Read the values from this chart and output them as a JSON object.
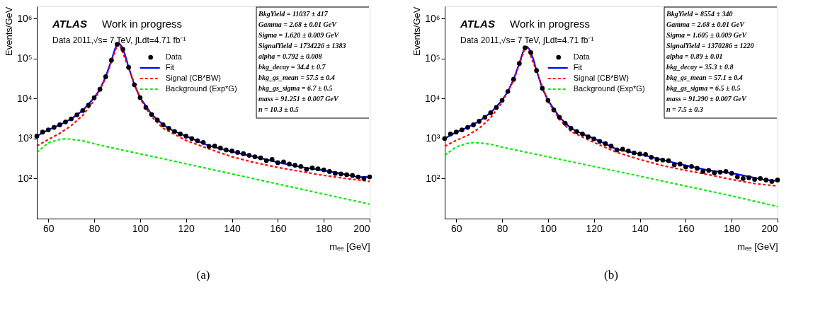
{
  "chart_data": [
    {
      "type": "scatter",
      "xlabel": "mₑₑ [GeV]",
      "ylabel": "Events/GeV",
      "log": true,
      "legend": "top right",
      "grid": false,
      "xlim": [
        55,
        200
      ],
      "xticks": [
        60,
        80,
        100,
        120,
        140,
        160,
        180,
        200
      ],
      "ylim": [
        10,
        2000000
      ],
      "yticks": [
        {
          "value": 100,
          "label": "10²"
        },
        {
          "value": 1000,
          "label": "10³"
        },
        {
          "value": 10000,
          "label": "10⁴"
        },
        {
          "value": 100000,
          "label": "10⁵"
        },
        {
          "value": 1000000,
          "label": "10⁶"
        }
      ],
      "annotations": [
        "ATLAS",
        "Work in progress",
        "Data 2011,√s= 7 TeV, ∫Ldt=4.71 fb⁻¹",
        "BkgYield = 11037 ± 417",
        "Gamma = 2.68 ± 0.01 GeV",
        "Sigma = 1.620 ± 0.009 GeV",
        "SignalYield = 1734226 ± 1383",
        "alpha = 0.792 ± 0.008",
        "bkg_decay = 34.4 ± 0.7",
        "bkg_gs_mean = 57.5 ± 0.4",
        "bkg_gs_sigma = 6.7 ± 0.5",
        "mass = 91.251 ± 0.007 GeV",
        "n = 10.3 ± 0.5",
        "(a)"
      ],
      "series": [
        {
          "name": "Data",
          "type": "scatter",
          "marker": "circle",
          "color": "#000000",
          "x": [
            55,
            57.5,
            60,
            62.5,
            65,
            67.5,
            70,
            72.5,
            75,
            77.5,
            80,
            82.5,
            85,
            87.5,
            90,
            92.5,
            95,
            97.5,
            100,
            102.5,
            105,
            107.5,
            110,
            112.5,
            115,
            117.5,
            120,
            122.5,
            125,
            127.5,
            130,
            132.5,
            135,
            137.5,
            140,
            142.5,
            145,
            147.5,
            150,
            152.5,
            155,
            157.5,
            160,
            162.5,
            165,
            167.5,
            170,
            172.5,
            175,
            177.5,
            180,
            182.5,
            185,
            187.5,
            190,
            192.5,
            195,
            197.5,
            200
          ],
          "values": [
            1150,
            1450,
            1650,
            1900,
            2200,
            2600,
            3100,
            3900,
            5000,
            6800,
            10500,
            17000,
            35000,
            90000,
            225000,
            170000,
            60000,
            22000,
            10500,
            6000,
            4000,
            2900,
            2200,
            1800,
            1500,
            1300,
            1150,
            1000,
            880,
            800,
            640,
            650,
            580,
            520,
            490,
            450,
            420,
            380,
            350,
            330,
            280,
            300,
            250,
            260,
            230,
            215,
            200,
            170,
            185,
            175,
            165,
            150,
            135,
            130,
            125,
            120,
            110,
            100,
            110
          ]
        },
        {
          "name": "Fit",
          "type": "line",
          "line_style": "solid",
          "color": "#0000ff",
          "x": [
            55,
            60,
            65,
            70,
            75,
            80,
            82.5,
            85,
            87.5,
            89,
            90,
            91,
            92,
            93.5,
            95,
            97.5,
            100,
            105,
            110,
            115,
            120,
            130,
            140,
            150,
            160,
            170,
            180,
            190,
            195,
            200
          ],
          "values": [
            1150,
            1650,
            2200,
            3100,
            5000,
            10500,
            17000,
            35000,
            90000,
            170000,
            225000,
            235000,
            200000,
            120000,
            60000,
            22000,
            10500,
            4000,
            2200,
            1500,
            1150,
            660,
            470,
            350,
            255,
            195,
            160,
            125,
            108,
            110
          ]
        },
        {
          "name": "Signal (CB*BW)",
          "type": "line",
          "line_style": "dashed",
          "color": "#ff0000",
          "x": [
            55,
            60,
            65,
            70,
            75,
            80,
            85,
            90,
            91,
            95,
            100,
            105,
            110,
            120,
            130,
            140,
            150,
            160,
            170,
            180,
            190,
            200
          ],
          "values": [
            650,
            950,
            1350,
            2100,
            3800,
            9000,
            32000,
            215000,
            230000,
            57000,
            9800,
            3500,
            1800,
            900,
            550,
            350,
            250,
            190,
            150,
            120,
            100,
            85
          ]
        },
        {
          "name": "Background (Exp*G)",
          "type": "line",
          "line_style": "dashed",
          "color": "#00ee00",
          "x": [
            55,
            60,
            65,
            67.5,
            70,
            75,
            80,
            90,
            100,
            120,
            140,
            160,
            180,
            200
          ],
          "values": [
            450,
            780,
            950,
            980,
            960,
            880,
            740,
            550,
            415,
            234,
            131,
            73,
            41,
            23
          ]
        }
      ]
    },
    {
      "type": "scatter",
      "xlabel": "mₑₑ [GeV]",
      "ylabel": "Events/GeV",
      "log": true,
      "legend": "top right",
      "grid": false,
      "xlim": [
        55,
        200
      ],
      "xticks": [
        60,
        80,
        100,
        120,
        140,
        160,
        180,
        200
      ],
      "ylim": [
        10,
        2000000
      ],
      "yticks": [
        {
          "value": 100,
          "label": "10²"
        },
        {
          "value": 1000,
          "label": "10³"
        },
        {
          "value": 10000,
          "label": "10⁴"
        },
        {
          "value": 100000,
          "label": "10⁵"
        },
        {
          "value": 1000000,
          "label": "10⁶"
        }
      ],
      "annotations": [
        "ATLAS",
        "Work in progress",
        "Data 2011,√s= 7 TeV, ∫Ldt=4.71 fb⁻¹",
        "BkgYield = 8554 ± 340",
        "Gamma = 2.68 ± 0.01 GeV",
        "Sigma = 1.605 ± 0.009 GeV",
        "SignalYield = 1370286 ± 1220",
        "alpha = 0.89 ± 0.01",
        "bkg_decay = 35.3 ± 0.8",
        "bkg_gs_mean = 57.1 ± 0.4",
        "bkg_gs_sigma = 6.5 ± 0.5",
        "mass = 91.290 ± 0.007 GeV",
        "n = 7.5 ± 0.3",
        "(b)"
      ],
      "series": [
        {
          "name": "Data",
          "type": "scatter",
          "marker": "circle",
          "color": "#000000",
          "x": [
            55,
            57.5,
            60,
            62.5,
            65,
            67.5,
            70,
            72.5,
            75,
            77.5,
            80,
            82.5,
            85,
            87.5,
            90,
            92.5,
            95,
            97.5,
            100,
            102.5,
            105,
            107.5,
            110,
            112.5,
            115,
            117.5,
            120,
            122.5,
            125,
            127.5,
            130,
            132.5,
            135,
            137.5,
            140,
            142.5,
            145,
            147.5,
            150,
            152.5,
            155,
            157.5,
            160,
            162.5,
            165,
            167.5,
            170,
            172.5,
            175,
            177.5,
            180,
            182.5,
            185,
            187.5,
            190,
            192.5,
            195,
            197.5,
            200
          ],
          "values": [
            1000,
            1300,
            1450,
            1650,
            1900,
            2200,
            2700,
            3400,
            4400,
            6000,
            9000,
            15000,
            30000,
            75000,
            185000,
            140000,
            50000,
            18000,
            9000,
            5200,
            3400,
            2400,
            1800,
            1500,
            1300,
            1100,
            980,
            850,
            750,
            650,
            520,
            540,
            490,
            440,
            410,
            400,
            340,
            300,
            290,
            280,
            220,
            230,
            195,
            200,
            180,
            150,
            160,
            140,
            145,
            150,
            135,
            110,
            100,
            105,
            95,
            100,
            92,
            85,
            92
          ]
        },
        {
          "name": "Fit",
          "type": "line",
          "line_style": "solid",
          "color": "#0000ff",
          "x": [
            55,
            60,
            65,
            70,
            75,
            80,
            82.5,
            85,
            87.5,
            89,
            90,
            91,
            92,
            93.5,
            95,
            97.5,
            100,
            105,
            110,
            115,
            120,
            130,
            140,
            150,
            160,
            170,
            180,
            190,
            195,
            200
          ],
          "values": [
            1000,
            1450,
            1900,
            2700,
            4400,
            9000,
            15000,
            30000,
            75000,
            140000,
            185000,
            195000,
            165000,
            100000,
            50000,
            18000,
            9000,
            3400,
            1800,
            1300,
            1000,
            540,
            410,
            290,
            213,
            160,
            137,
            105,
            92,
            88
          ]
        },
        {
          "name": "Signal (CB*BW)",
          "type": "line",
          "line_style": "dashed",
          "color": "#ff0000",
          "x": [
            55,
            60,
            65,
            70,
            75,
            80,
            85,
            90,
            91,
            95,
            100,
            105,
            110,
            120,
            130,
            140,
            150,
            160,
            170,
            180,
            190,
            200
          ],
          "values": [
            640,
            900,
            1200,
            1800,
            3300,
            8000,
            28000,
            180000,
            190000,
            48000,
            8500,
            3000,
            1500,
            800,
            450,
            300,
            210,
            160,
            125,
            95,
            75,
            65
          ]
        },
        {
          "name": "Background (Exp*G)",
          "type": "line",
          "line_style": "dashed",
          "color": "#00ee00",
          "x": [
            55,
            60,
            65,
            67.5,
            70,
            75,
            80,
            90,
            100,
            120,
            140,
            160,
            180,
            200
          ],
          "values": [
            380,
            620,
            760,
            790,
            780,
            720,
            610,
            460,
            350,
            200,
            115,
            65,
            37,
            20
          ]
        }
      ]
    }
  ]
}
